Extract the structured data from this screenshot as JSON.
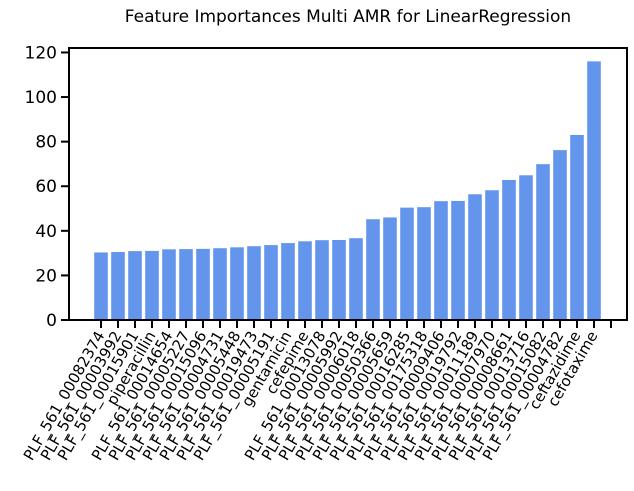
{
  "chart_data": {
    "type": "bar",
    "title": "Feature Importances Multi AMR for LinearRegression",
    "xlabel": "",
    "ylabel": "",
    "ylim": [
      0,
      122
    ],
    "yticks": [
      0,
      20,
      40,
      60,
      80,
      100,
      120
    ],
    "bar_color": "#6495ED",
    "grid": false,
    "categories": [
      "PLF_561_00082374",
      "PLF_561_00003992",
      "PLF_561_00015901",
      "piperacillin",
      "PLF_561_00014654",
      "PLF_561_00005227",
      "PLF_561_00015096",
      "PLF_561_00004731",
      "PLF_561_00005448",
      "PLF_561_00019473",
      "PLF_561_00005191",
      "gentamicin",
      "cefepime",
      "PLF_561_00013078",
      "PLF_561_00005992",
      "PLF_561_00006018",
      "PLF_561_00050366",
      "PLF_561_00005659",
      "PLF_561_00016285",
      "PLF_561_00175318",
      "PLF_561_00009406",
      "PLF_561_00019792",
      "PLF_561_00011189",
      "PLF_561_00007970",
      "PLF_561_00008661",
      "PLF_561_00013716",
      "PLF_561_00015082",
      "PLF_561_00004782",
      "ceftazidime",
      "cefotaxime"
    ],
    "values": [
      30.3,
      30.5,
      30.9,
      31.0,
      31.7,
      31.8,
      31.9,
      32.2,
      32.6,
      33.1,
      33.6,
      34.5,
      35.3,
      35.8,
      35.9,
      36.7,
      45.2,
      46.0,
      50.4,
      50.6,
      53.3,
      53.4,
      56.4,
      58.2,
      62.8,
      64.9,
      69.9,
      76.2,
      83.0,
      116.0
    ]
  }
}
